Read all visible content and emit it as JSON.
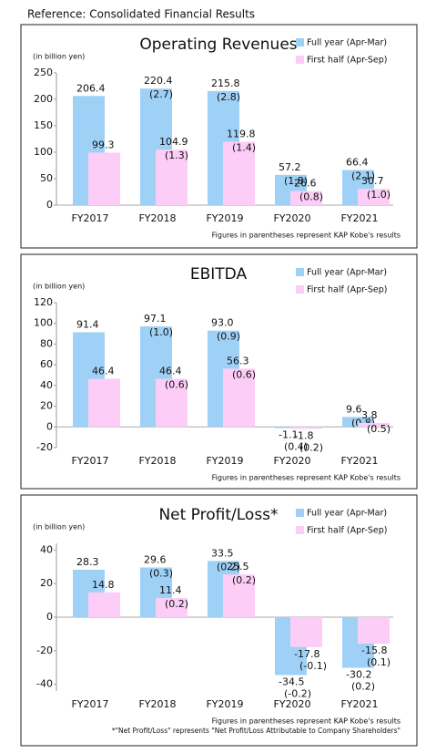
{
  "title": "Reference: Consolidated Financial Results",
  "chart_data": [
    {
      "type": "bar",
      "title": "Operating Revenues",
      "y_label": "(in billion yen)",
      "categories": [
        "FY2017",
        "FY2018",
        "FY2019",
        "FY2020",
        "FY2021"
      ],
      "ylim": [
        0,
        250
      ],
      "yticks": [
        0,
        50,
        100,
        150,
        200,
        250
      ],
      "series": [
        {
          "name": "Full year (Apr-Mar)",
          "color": "#9fd1f6",
          "values": [
            206.4,
            220.4,
            215.8,
            57.2,
            66.4
          ],
          "kap_kobe_values": [
            null,
            2.7,
            2.8,
            1.8,
            2.1
          ],
          "kap_kobe_labels": [
            null,
            "(2.7)",
            "(2.8)",
            "(1.8)",
            "(2.1)"
          ]
        },
        {
          "name": "First half (Apr-Sep)",
          "color": "#fccdf6",
          "values": [
            99.3,
            104.9,
            119.8,
            26.6,
            30.7
          ],
          "kap_kobe_values": [
            null,
            1.3,
            1.4,
            0.8,
            1.0
          ],
          "kap_kobe_labels": [
            null,
            "(1.3)",
            "(1.4)",
            "(0.8)",
            "(1.0)"
          ]
        }
      ],
      "note": "Figures in parentheses represent KAP Kobe's results"
    },
    {
      "type": "bar",
      "title": "EBITDA",
      "y_label": "(in billion yen)",
      "categories": [
        "FY2017",
        "FY2018",
        "FY2019",
        "FY2020",
        "FY2021"
      ],
      "ylim": [
        -20,
        120
      ],
      "yticks": [
        -20,
        0,
        20,
        40,
        60,
        80,
        100,
        120
      ],
      "series": [
        {
          "name": "Full year (Apr-Mar)",
          "color": "#9fd1f6",
          "values": [
            91.4,
            97.1,
            93.0,
            -1.1,
            9.6
          ],
          "value_labels": [
            "91.4",
            "97.1",
            "93.0",
            "-1.1",
            "9.6"
          ],
          "kap_kobe_values": [
            null,
            1.0,
            0.9,
            0.4,
            0.8
          ],
          "kap_kobe_labels": [
            null,
            "(1.0)",
            "(0.9)",
            "(0.4)",
            "(0.8)"
          ]
        },
        {
          "name": "First half (Apr-Sep)",
          "color": "#fccdf6",
          "values": [
            46.4,
            46.4,
            56.3,
            -1.8,
            3.8
          ],
          "kap_kobe_values": [
            null,
            0.6,
            0.6,
            0.2,
            0.5
          ],
          "kap_kobe_labels": [
            null,
            "(0.6)",
            "(0.6)",
            "(0.2)",
            "(0.5)"
          ]
        }
      ],
      "note": "Figures in parentheses represent KAP Kobe's results"
    },
    {
      "type": "bar",
      "title": "Net Profit/Loss*",
      "y_label": "(in billion yen)",
      "categories": [
        "FY2017",
        "FY2018",
        "FY2019",
        "FY2020",
        "FY2021"
      ],
      "ylim": [
        -44,
        44
      ],
      "yticks": [
        -40,
        -20,
        0,
        20,
        40
      ],
      "series": [
        {
          "name": "Full year (Apr-Mar)",
          "color": "#9fd1f6",
          "values": [
            28.3,
            29.6,
            33.5,
            -34.5,
            -30.2
          ],
          "kap_kobe_values": [
            null,
            0.3,
            0.2,
            -0.2,
            0.2
          ],
          "kap_kobe_labels": [
            null,
            "(0.3)",
            "(0.2)",
            "(-0.2)",
            "(0.2)"
          ]
        },
        {
          "name": "First half (Apr-Sep)",
          "color": "#fccdf6",
          "values": [
            14.8,
            11.4,
            25.5,
            -17.8,
            -15.8
          ],
          "kap_kobe_values": [
            null,
            0.2,
            0.2,
            -0.1,
            0.1
          ],
          "kap_kobe_labels": [
            null,
            "(0.2)",
            "(0.2)",
            "(-0.1)",
            "(0.1)"
          ]
        }
      ],
      "note": "Figures in parentheses represent KAP Kobe's results",
      "footnote": "*\"Net Profit/Loss\" represents \"Net Profit/Loss Attributable to Company Shareholders\""
    }
  ]
}
